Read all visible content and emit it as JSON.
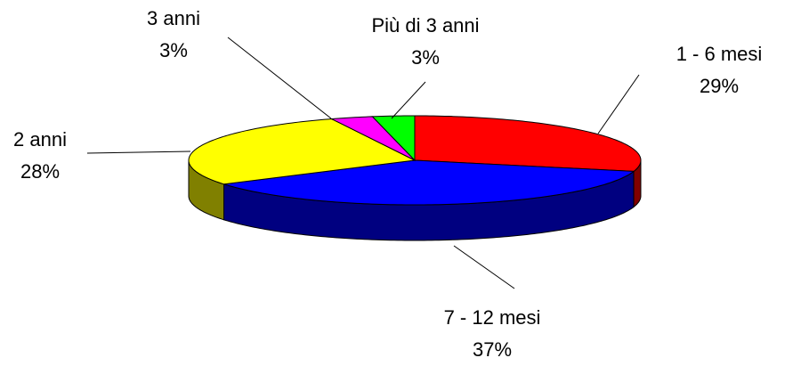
{
  "chart_data": {
    "type": "pie3d",
    "categories": [
      "1 - 6 mesi",
      "7 - 12 mesi",
      "2 anni",
      "3 anni",
      "Più di 3 anni"
    ],
    "values": [
      29,
      37,
      28,
      3,
      3
    ],
    "value_labels": [
      "29%",
      "37%",
      "28%",
      "3%",
      "3%"
    ],
    "colors": [
      "#ff0000",
      "#0000ff",
      "#ffff00",
      "#ff00ff",
      "#00ff00"
    ],
    "side_colors": [
      "#800000",
      "#000080",
      "#808000",
      "#800080",
      "#008000"
    ]
  }
}
